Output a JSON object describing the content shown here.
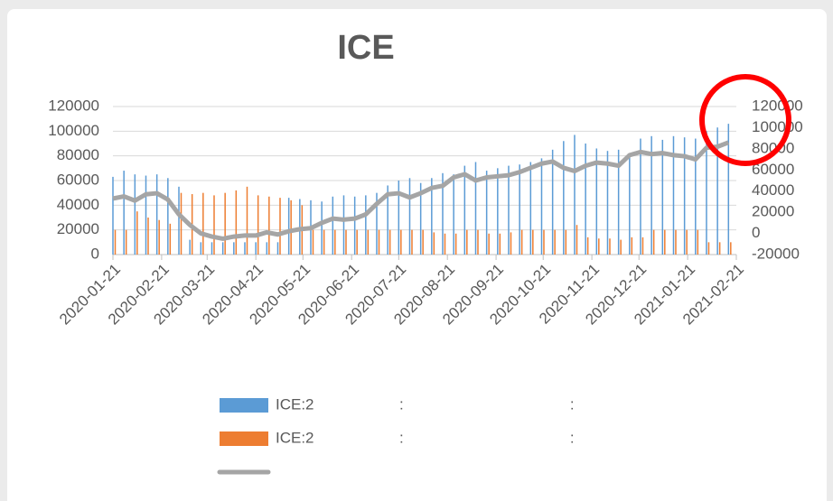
{
  "chart_data": {
    "type": "bar-line",
    "title": "ICE",
    "x": [
      "2020-01-21",
      "2020-01-28",
      "2020-02-04",
      "2020-02-11",
      "2020-02-18",
      "2020-02-25",
      "2020-03-03",
      "2020-03-10",
      "2020-03-17",
      "2020-03-24",
      "2020-03-31",
      "2020-04-07",
      "2020-04-14",
      "2020-04-21",
      "2020-04-28",
      "2020-05-05",
      "2020-05-12",
      "2020-05-19",
      "2020-05-26",
      "2020-06-02",
      "2020-06-09",
      "2020-06-16",
      "2020-06-23",
      "2020-06-30",
      "2020-07-07",
      "2020-07-14",
      "2020-07-21",
      "2020-07-28",
      "2020-08-04",
      "2020-08-11",
      "2020-08-18",
      "2020-08-25",
      "2020-09-01",
      "2020-09-08",
      "2020-09-15",
      "2020-09-22",
      "2020-09-29",
      "2020-10-06",
      "2020-10-13",
      "2020-10-20",
      "2020-10-27",
      "2020-11-03",
      "2020-11-10",
      "2020-11-17",
      "2020-11-24",
      "2020-12-01",
      "2020-12-08",
      "2020-12-15",
      "2020-12-22",
      "2020-12-29",
      "2021-01-05",
      "2021-01-12",
      "2021-01-19",
      "2021-01-26",
      "2021-02-02",
      "2021-02-09",
      "2021-02-16"
    ],
    "xlim": [
      "2020-01-21",
      "2021-02-21"
    ],
    "xticks": [
      "2020-01-21",
      "2020-02-21",
      "2020-03-21",
      "2020-04-21",
      "2020-05-21",
      "2020-06-21",
      "2020-07-21",
      "2020-08-21",
      "2020-09-21",
      "2020-10-21",
      "2020-11-21",
      "2020-12-21",
      "2021-01-21",
      "2021-02-21"
    ],
    "series": [
      {
        "name": "ICE:2                    :                                       :",
        "type": "bar",
        "color": "#5b9bd5",
        "values": [
          63000,
          68000,
          65000,
          64000,
          65000,
          62000,
          55000,
          12000,
          10000,
          10000,
          10000,
          10000,
          10000,
          10000,
          10000,
          10000,
          46000,
          45000,
          44000,
          43000,
          47000,
          48000,
          47000,
          48000,
          50000,
          56000,
          60000,
          62000,
          58000,
          62000,
          66000,
          65000,
          72000,
          75000,
          68000,
          70000,
          72000,
          73000,
          75000,
          78000,
          85000,
          92000,
          97000,
          90000,
          86000,
          84000,
          85000,
          82000,
          94000,
          96000,
          93000,
          96000,
          95000,
          94000,
          100000,
          103000,
          106000
        ]
      },
      {
        "name": "ICE:2                    :                                       :",
        "type": "bar",
        "color": "#ed7d31",
        "values": [
          20000,
          20000,
          35000,
          30000,
          28000,
          25000,
          50000,
          49000,
          50000,
          48000,
          50000,
          52000,
          55000,
          48000,
          47000,
          46000,
          44000,
          40000,
          20000,
          20000,
          20000,
          20000,
          20000,
          20000,
          20000,
          20000,
          20000,
          20000,
          20000,
          18000,
          17000,
          17000,
          20000,
          20000,
          17000,
          17000,
          18000,
          20000,
          20000,
          20000,
          20000,
          20000,
          24000,
          14000,
          13000,
          13000,
          12000,
          14000,
          14000,
          20000,
          20000,
          20000,
          20000,
          20000,
          10000,
          10000,
          10000
        ]
      },
      {
        "name": null,
        "type": "line",
        "axis": "y2",
        "color": "#a5a5a5",
        "values": [
          33000,
          35000,
          31000,
          37000,
          38000,
          32000,
          18000,
          8000,
          0,
          -3000,
          -5000,
          -3000,
          -2000,
          -2000,
          1000,
          -1000,
          2000,
          4000,
          5000,
          10000,
          14000,
          13000,
          14000,
          18000,
          28000,
          37000,
          38000,
          34000,
          38000,
          43000,
          45000,
          53000,
          56000,
          50000,
          53000,
          54000,
          55000,
          58000,
          62000,
          66000,
          68000,
          62000,
          59000,
          64000,
          67000,
          66000,
          64000,
          74000,
          77000,
          75000,
          76000,
          74000,
          73000,
          70000,
          81000,
          82000,
          86000
        ]
      }
    ],
    "ylim": [
      0,
      120000
    ],
    "yticks": [
      0,
      20000,
      40000,
      60000,
      80000,
      100000,
      120000
    ],
    "y2lim": [
      -20000,
      120000
    ],
    "y2ticks": [
      -20000,
      0,
      20000,
      40000,
      60000,
      80000,
      100000,
      120000
    ],
    "grid": true
  }
}
